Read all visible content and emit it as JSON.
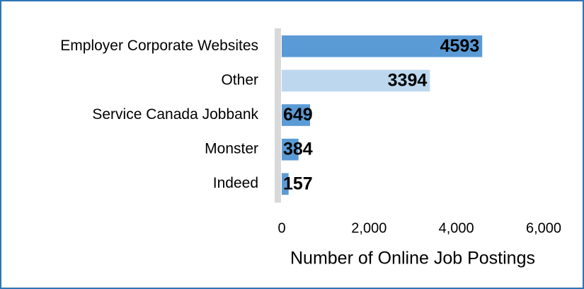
{
  "chart_data": {
    "type": "bar",
    "orientation": "horizontal",
    "categories": [
      "Employer Corporate Websites",
      "Other",
      "Service Canada Jobbank",
      "Monster",
      "Indeed"
    ],
    "values": [
      4593,
      3394,
      649,
      384,
      157
    ],
    "colors": [
      "#5b9bd5",
      "#bdd7ee",
      "#5b9bd5",
      "#5b9bd5",
      "#5b9bd5"
    ],
    "xlim": [
      0,
      6000
    ],
    "xticks": [
      0,
      {
        "value": 2000,
        "label": "2,000"
      },
      {
        "value": 4000,
        "label": "4,000"
      },
      {
        "value": 6000,
        "label": "6,000"
      }
    ],
    "xlabel": "Number of Online Job Postings",
    "grid": false
  }
}
